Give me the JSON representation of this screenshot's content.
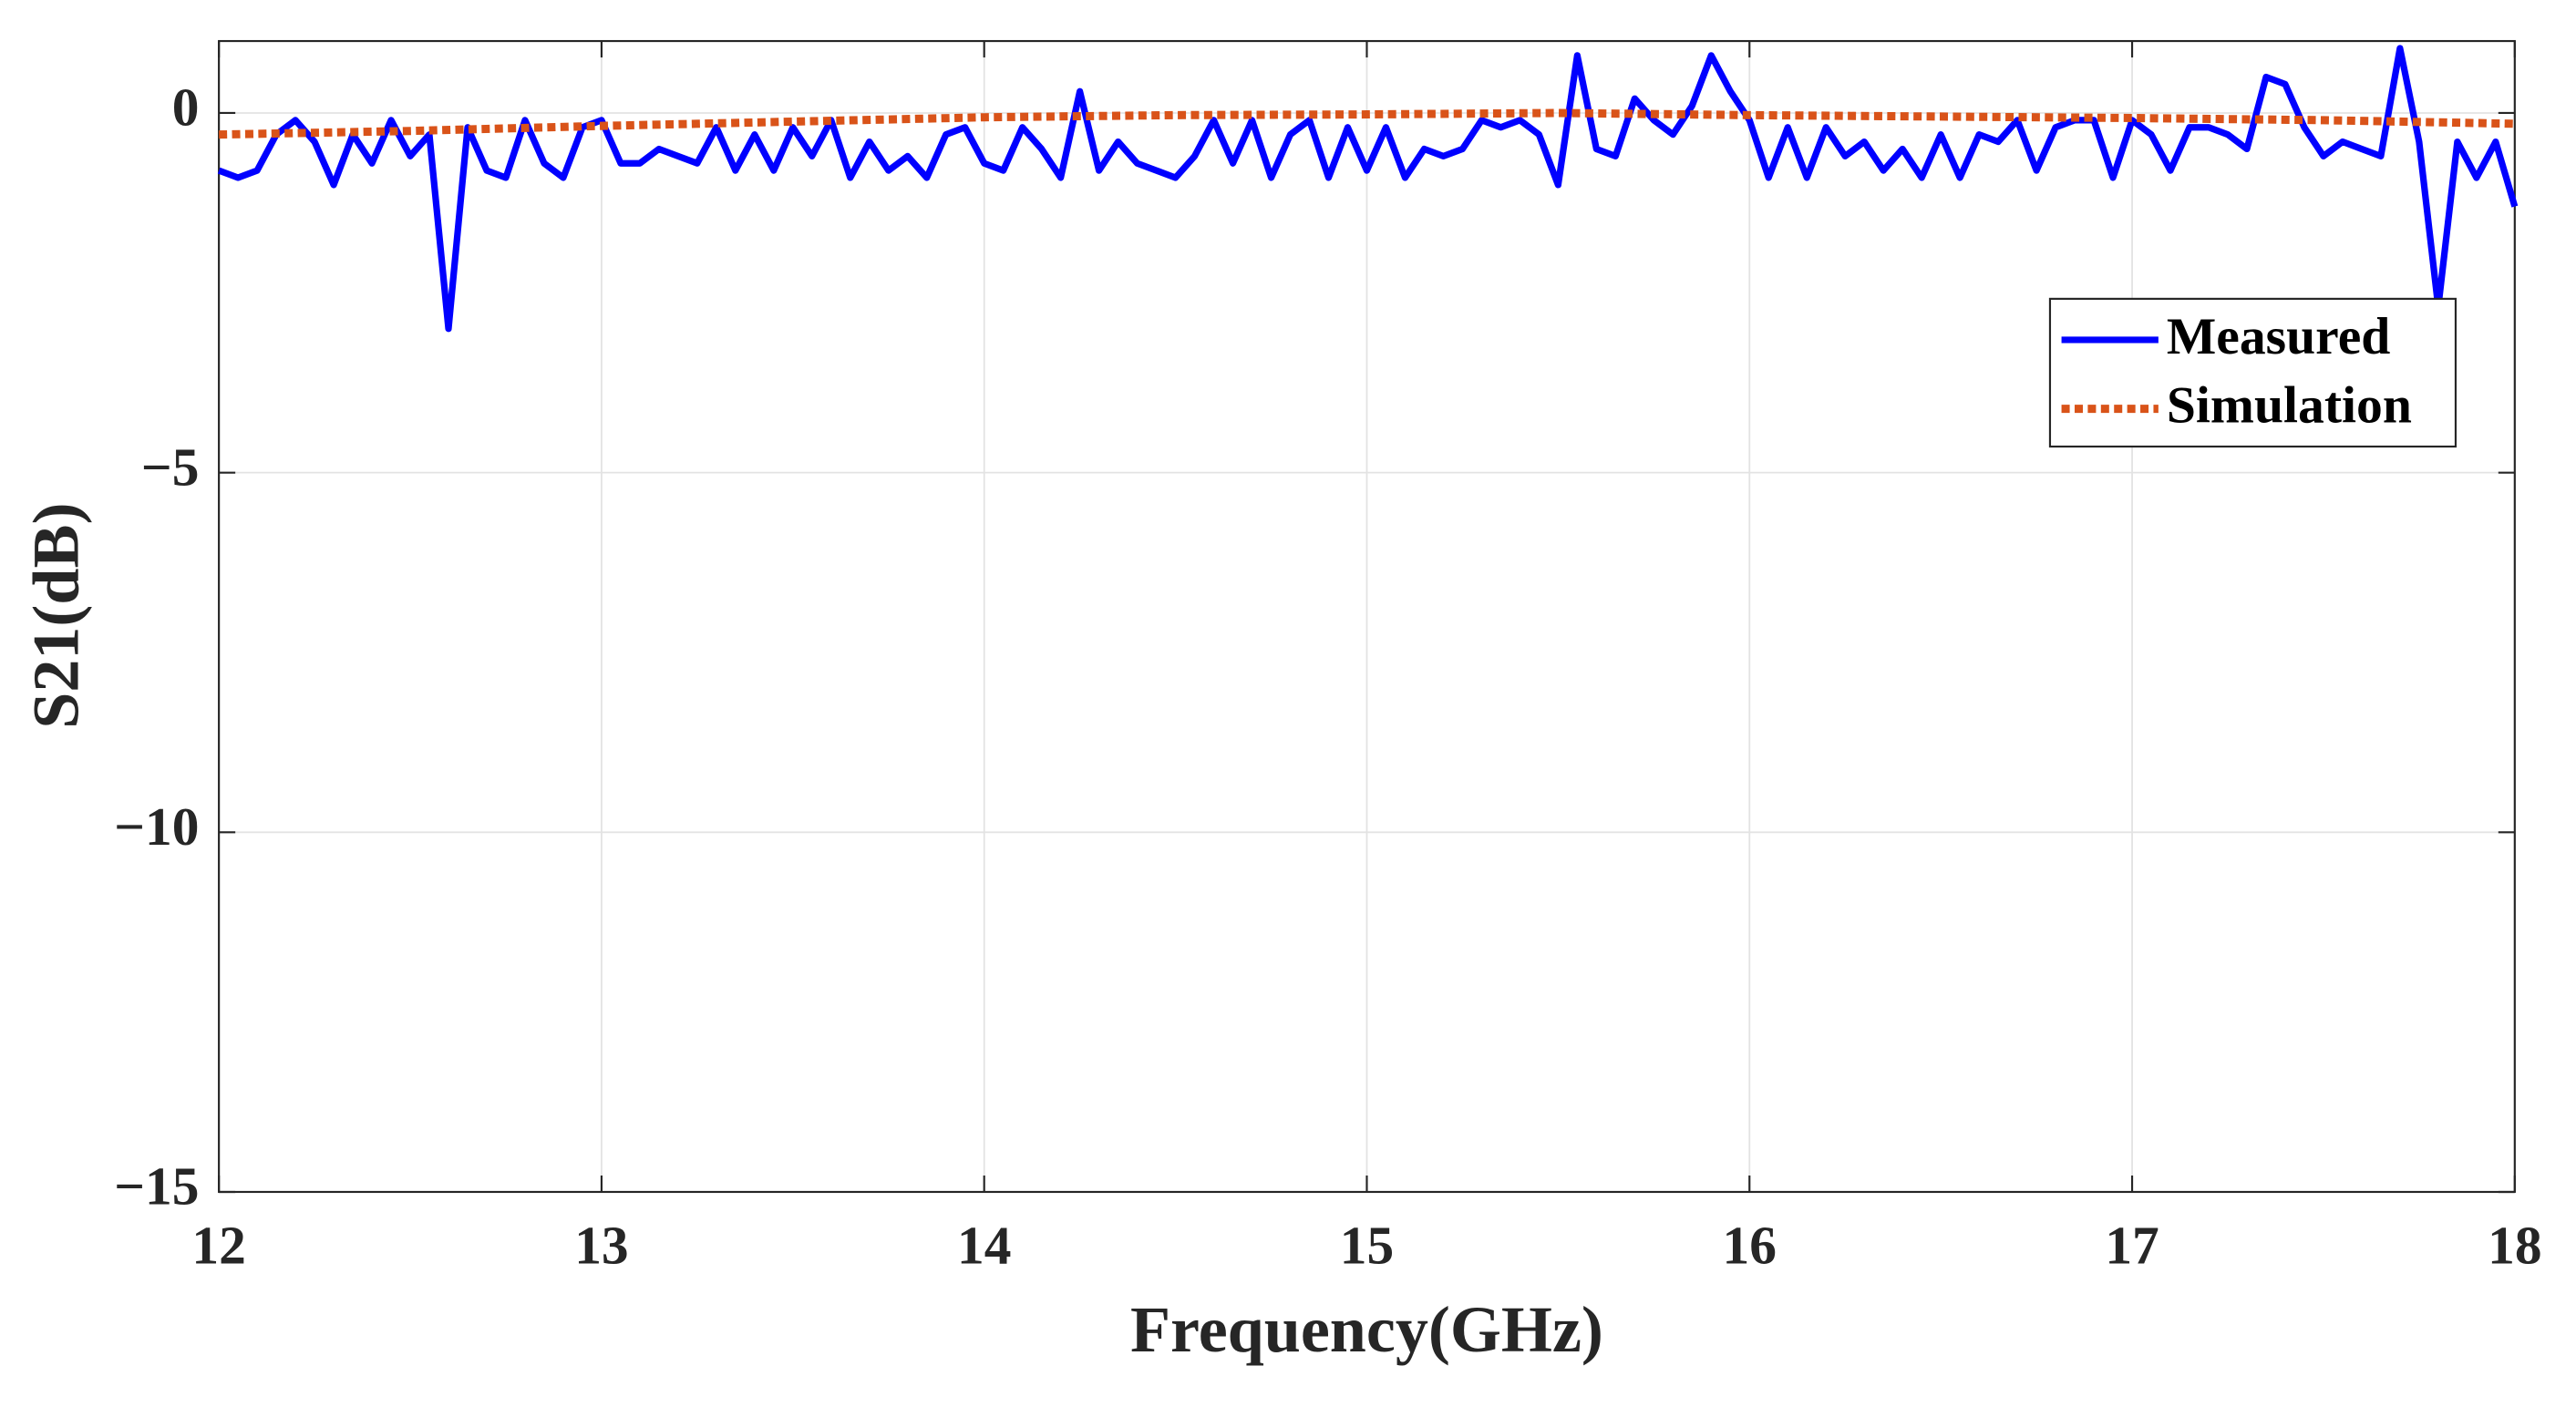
{
  "chart_data": {
    "type": "line",
    "xlabel": "Frequency(GHz)",
    "ylabel": "S21(dB)",
    "xlim": [
      12,
      18
    ],
    "xticks": [
      12,
      13,
      14,
      15,
      16,
      17,
      18
    ],
    "ylim": [
      -15,
      1
    ],
    "yticks": [
      {
        "value": -15,
        "label": "−15"
      },
      {
        "value": -10,
        "label": "−10"
      },
      {
        "value": -5,
        "label": "−5"
      },
      0
    ],
    "grid": true,
    "legend": "northeast",
    "series": [
      {
        "name": "Measured",
        "color": "#0000ff",
        "style": "solid",
        "x": [
          12.0,
          12.05,
          12.1,
          12.15,
          12.2,
          12.25,
          12.3,
          12.35,
          12.4,
          12.45,
          12.5,
          12.55,
          12.6,
          12.65,
          12.7,
          12.75,
          12.8,
          12.85,
          12.9,
          12.95,
          13.0,
          13.05,
          13.1,
          13.15,
          13.2,
          13.25,
          13.3,
          13.35,
          13.4,
          13.45,
          13.5,
          13.55,
          13.6,
          13.65,
          13.7,
          13.75,
          13.8,
          13.85,
          13.9,
          13.95,
          14.0,
          14.05,
          14.1,
          14.15,
          14.2,
          14.25,
          14.3,
          14.35,
          14.4,
          14.45,
          14.5,
          14.55,
          14.6,
          14.65,
          14.7,
          14.75,
          14.8,
          14.85,
          14.9,
          14.95,
          15.0,
          15.05,
          15.1,
          15.15,
          15.2,
          15.25,
          15.3,
          15.35,
          15.4,
          15.45,
          15.5,
          15.55,
          15.6,
          15.65,
          15.7,
          15.75,
          15.8,
          15.85,
          15.9,
          15.95,
          16.0,
          16.05,
          16.1,
          16.15,
          16.2,
          16.25,
          16.3,
          16.35,
          16.4,
          16.45,
          16.5,
          16.55,
          16.6,
          16.65,
          16.7,
          16.75,
          16.8,
          16.85,
          16.9,
          16.95,
          17.0,
          17.05,
          17.1,
          17.15,
          17.2,
          17.25,
          17.3,
          17.35,
          17.4,
          17.45,
          17.5,
          17.55,
          17.6,
          17.65,
          17.7,
          17.75,
          17.8,
          17.85,
          17.9,
          17.95,
          18.0
        ],
        "values": [
          -0.8,
          -0.9,
          -0.8,
          -0.3,
          -0.1,
          -0.4,
          -1.0,
          -0.3,
          -0.7,
          -0.1,
          -0.6,
          -0.3,
          -3.0,
          -0.2,
          -0.8,
          -0.9,
          -0.1,
          -0.7,
          -0.9,
          -0.2,
          -0.1,
          -0.7,
          -0.7,
          -0.5,
          -0.6,
          -0.7,
          -0.2,
          -0.8,
          -0.3,
          -0.8,
          -0.2,
          -0.6,
          -0.1,
          -0.9,
          -0.4,
          -0.8,
          -0.6,
          -0.9,
          -0.3,
          -0.2,
          -0.7,
          -0.8,
          -0.2,
          -0.5,
          -0.9,
          0.3,
          -0.8,
          -0.4,
          -0.7,
          -0.8,
          -0.9,
          -0.6,
          -0.1,
          -0.7,
          -0.1,
          -0.9,
          -0.3,
          -0.1,
          -0.9,
          -0.2,
          -0.8,
          -0.2,
          -0.9,
          -0.5,
          -0.6,
          -0.5,
          -0.1,
          -0.2,
          -0.1,
          -0.3,
          -1.0,
          0.8,
          -0.5,
          -0.6,
          0.2,
          -0.1,
          -0.3,
          0.1,
          0.8,
          0.3,
          -0.1,
          -0.9,
          -0.2,
          -0.9,
          -0.2,
          -0.6,
          -0.4,
          -0.8,
          -0.5,
          -0.9,
          -0.3,
          -0.9,
          -0.3,
          -0.4,
          -0.1,
          -0.8,
          -0.2,
          -0.1,
          -0.1,
          -0.9,
          -0.1,
          -0.3,
          -0.8,
          -0.2,
          -0.2,
          -0.3,
          -0.5,
          0.5,
          0.4,
          -0.2,
          -0.6,
          -0.4,
          -0.5,
          -0.6,
          0.9,
          -0.4,
          -2.7,
          -0.4,
          -0.9,
          -0.4,
          -1.3
        ]
      },
      {
        "name": "Simulation",
        "color": "#d95319",
        "style": "dotted",
        "x": [
          12,
          12.5,
          13,
          13.5,
          14,
          14.5,
          15,
          15.5,
          16,
          16.5,
          17,
          17.5,
          18
        ],
        "values": [
          -0.3,
          -0.25,
          -0.18,
          -0.12,
          -0.06,
          -0.03,
          -0.02,
          0,
          -0.03,
          -0.05,
          -0.07,
          -0.1,
          -0.15
        ]
      }
    ]
  }
}
